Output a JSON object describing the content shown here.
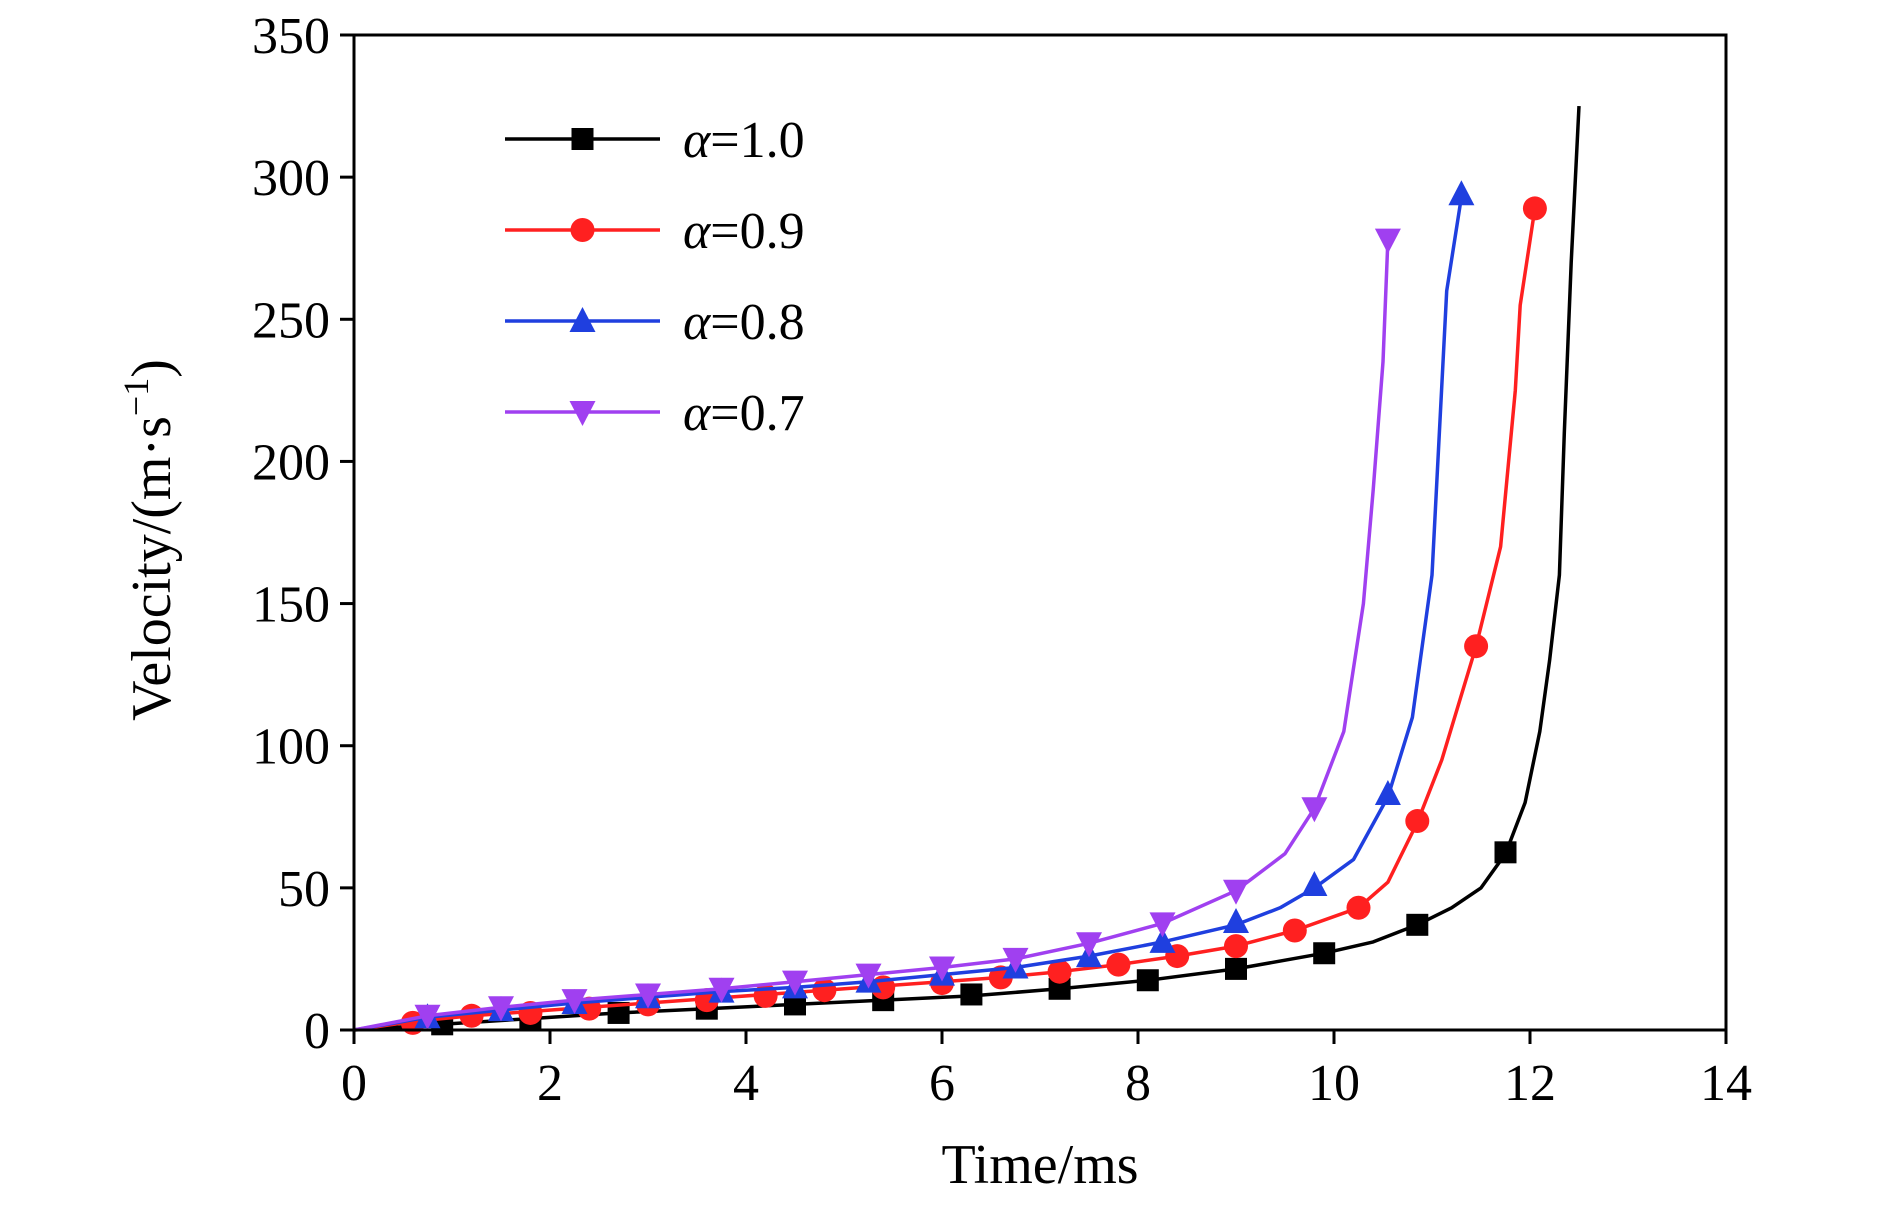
{
  "chart_data": {
    "type": "line",
    "xlabel": "Time/ms",
    "ylabel_main": "Velocity/(m·s",
    "ylabel_sup": "−1",
    "ylabel_close": ")",
    "xlim": [
      0,
      14
    ],
    "ylim": [
      0,
      350
    ],
    "xticks": [
      0,
      2,
      4,
      6,
      8,
      10,
      12,
      14
    ],
    "yticks": [
      0,
      50,
      100,
      150,
      200,
      250,
      300,
      350
    ],
    "xtick_labels": [
      "0",
      "2",
      "4",
      "6",
      "8",
      "10",
      "12",
      "14"
    ],
    "ytick_labels": [
      "0",
      "50",
      "100",
      "150",
      "200",
      "250",
      "300",
      "350"
    ],
    "grid": false,
    "legend_position": "top-left",
    "series": [
      {
        "legend_symbol": "α",
        "legend_value": "=1.0",
        "color": "#000000",
        "marker": "square",
        "line": [
          [
            0,
            0
          ],
          [
            0.9,
            2
          ],
          [
            1.8,
            4
          ],
          [
            2.7,
            6
          ],
          [
            3.6,
            7.5
          ],
          [
            4.5,
            9
          ],
          [
            5.4,
            10.5
          ],
          [
            6.3,
            12
          ],
          [
            7.2,
            14.5
          ],
          [
            8.1,
            17.5
          ],
          [
            9.0,
            21.5
          ],
          [
            9.9,
            27
          ],
          [
            10.4,
            31
          ],
          [
            10.85,
            37
          ],
          [
            11.2,
            43
          ],
          [
            11.5,
            50
          ],
          [
            11.75,
            62
          ],
          [
            11.95,
            80
          ],
          [
            12.1,
            105
          ],
          [
            12.2,
            130
          ],
          [
            12.3,
            160
          ],
          [
            12.35,
            210
          ],
          [
            12.42,
            270
          ],
          [
            12.5,
            325
          ]
        ],
        "markers": [
          [
            0.9,
            2
          ],
          [
            1.8,
            4
          ],
          [
            2.7,
            6
          ],
          [
            3.6,
            7.5
          ],
          [
            4.5,
            9
          ],
          [
            5.4,
            10.5
          ],
          [
            6.3,
            12.5
          ],
          [
            7.2,
            14.5
          ],
          [
            8.1,
            17.5
          ],
          [
            9.0,
            21.5
          ],
          [
            9.9,
            27
          ],
          [
            10.85,
            37
          ],
          [
            11.75,
            62.5
          ]
        ]
      },
      {
        "legend_symbol": "α",
        "legend_value": "=0.9",
        "color": "#ff2020",
        "marker": "circle",
        "line": [
          [
            0,
            0
          ],
          [
            0.6,
            3
          ],
          [
            1.2,
            5
          ],
          [
            1.8,
            6.5
          ],
          [
            2.4,
            8
          ],
          [
            3.0,
            9.5
          ],
          [
            3.6,
            11
          ],
          [
            4.2,
            12.5
          ],
          [
            4.8,
            14
          ],
          [
            5.4,
            15.5
          ],
          [
            6.0,
            17
          ],
          [
            6.6,
            18.5
          ],
          [
            7.2,
            20.5
          ],
          [
            7.8,
            23
          ],
          [
            8.4,
            26
          ],
          [
            9.0,
            29.5
          ],
          [
            9.6,
            35
          ],
          [
            10.25,
            43
          ],
          [
            10.55,
            52
          ],
          [
            10.85,
            73
          ],
          [
            11.1,
            95
          ],
          [
            11.45,
            135
          ],
          [
            11.7,
            170
          ],
          [
            11.85,
            225
          ],
          [
            11.9,
            255
          ],
          [
            12.05,
            289
          ]
        ],
        "markers": [
          [
            0.6,
            2.5
          ],
          [
            1.2,
            5
          ],
          [
            1.8,
            6
          ],
          [
            2.4,
            7.5
          ],
          [
            3.0,
            9
          ],
          [
            3.6,
            10.5
          ],
          [
            4.2,
            12
          ],
          [
            4.8,
            14
          ],
          [
            5.4,
            15
          ],
          [
            6.0,
            16.5
          ],
          [
            6.6,
            18.5
          ],
          [
            7.2,
            20.5
          ],
          [
            7.8,
            23
          ],
          [
            8.4,
            26
          ],
          [
            9.0,
            29.5
          ],
          [
            9.6,
            35
          ],
          [
            10.25,
            43
          ],
          [
            10.85,
            73.5
          ],
          [
            11.45,
            135
          ],
          [
            12.05,
            289
          ]
        ]
      },
      {
        "legend_symbol": "α",
        "legend_value": "=0.8",
        "color": "#1f3fdf",
        "marker": "triangle-up",
        "line": [
          [
            0,
            0
          ],
          [
            0.75,
            4.5
          ],
          [
            1.5,
            7
          ],
          [
            2.25,
            9.5
          ],
          [
            3.0,
            11.5
          ],
          [
            3.75,
            13.5
          ],
          [
            4.5,
            15
          ],
          [
            5.25,
            17
          ],
          [
            6.0,
            19.5
          ],
          [
            6.75,
            22
          ],
          [
            7.5,
            26
          ],
          [
            8.25,
            31
          ],
          [
            9.0,
            37
          ],
          [
            9.45,
            43
          ],
          [
            9.8,
            50
          ],
          [
            10.2,
            60
          ],
          [
            10.55,
            82
          ],
          [
            10.8,
            110
          ],
          [
            11.0,
            160
          ],
          [
            11.15,
            260
          ],
          [
            11.3,
            293
          ]
        ],
        "markers": [
          [
            0.75,
            4.5
          ],
          [
            1.5,
            7
          ],
          [
            2.25,
            9.5
          ],
          [
            3.0,
            11.5
          ],
          [
            3.75,
            13.5
          ],
          [
            4.5,
            15
          ],
          [
            5.25,
            17
          ],
          [
            6.0,
            19.5
          ],
          [
            6.75,
            22
          ],
          [
            7.5,
            26
          ],
          [
            8.25,
            31
          ],
          [
            9.0,
            38
          ],
          [
            9.8,
            51
          ],
          [
            10.55,
            83
          ],
          [
            11.3,
            294
          ]
        ]
      },
      {
        "legend_symbol": "α",
        "legend_value": "=0.7",
        "color": "#a040f0",
        "marker": "triangle-down",
        "line": [
          [
            0,
            0
          ],
          [
            0.75,
            5
          ],
          [
            1.5,
            8
          ],
          [
            2.25,
            10.5
          ],
          [
            3.0,
            12.5
          ],
          [
            3.75,
            14.5
          ],
          [
            4.5,
            17
          ],
          [
            5.25,
            19.5
          ],
          [
            6.0,
            22
          ],
          [
            6.75,
            25
          ],
          [
            7.5,
            30.5
          ],
          [
            8.25,
            37.5
          ],
          [
            9.0,
            49
          ],
          [
            9.5,
            62
          ],
          [
            9.8,
            78
          ],
          [
            10.1,
            105
          ],
          [
            10.3,
            150
          ],
          [
            10.4,
            190
          ],
          [
            10.5,
            235
          ],
          [
            10.55,
            278
          ]
        ],
        "markers": [
          [
            0.75,
            5
          ],
          [
            1.5,
            8
          ],
          [
            2.25,
            10.5
          ],
          [
            3.0,
            12.5
          ],
          [
            3.75,
            14.5
          ],
          [
            4.5,
            17
          ],
          [
            5.25,
            19.5
          ],
          [
            6.0,
            22
          ],
          [
            6.75,
            25
          ],
          [
            7.5,
            30.5
          ],
          [
            8.25,
            37.5
          ],
          [
            9.0,
            49
          ],
          [
            9.8,
            78
          ],
          [
            10.55,
            278
          ]
        ]
      }
    ]
  }
}
